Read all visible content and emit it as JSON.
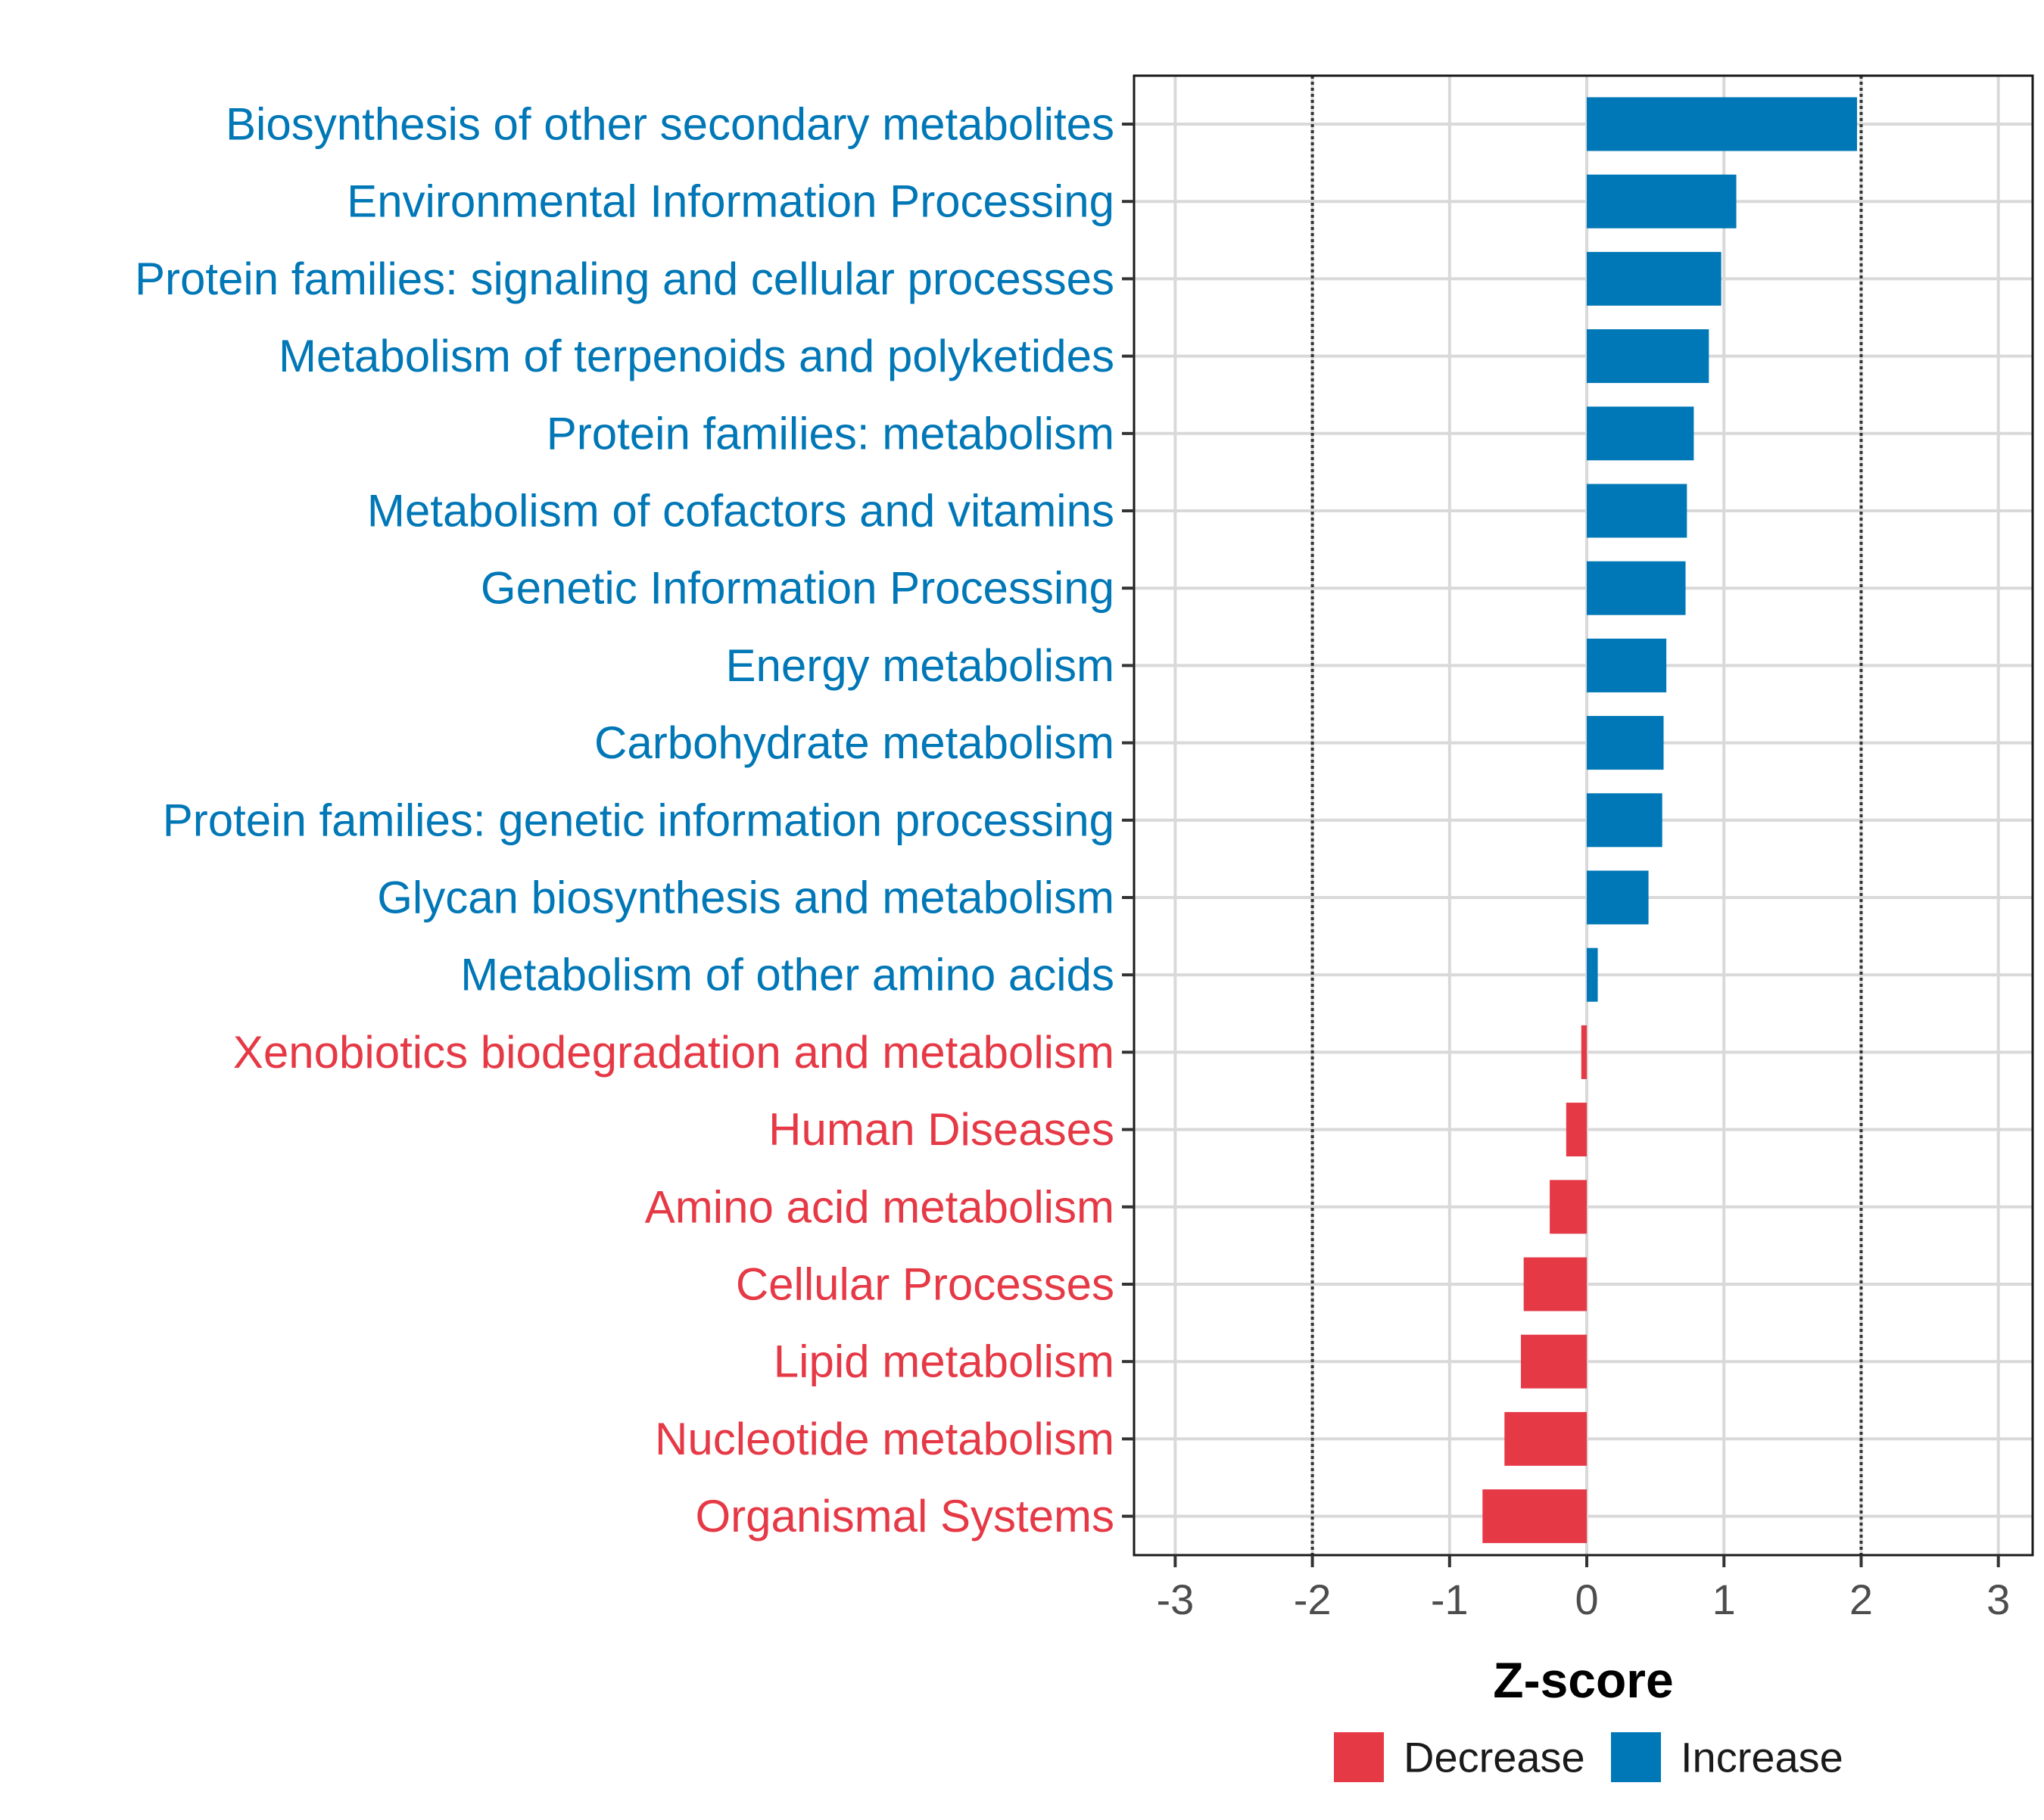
{
  "chart_data": {
    "type": "bar",
    "orientation": "horizontal",
    "xlabel": "Z-score",
    "xlim": [
      -3.3,
      3.25
    ],
    "xticks": [
      -3,
      -2,
      -1,
      0,
      1,
      2,
      3
    ],
    "xtick_labels": [
      "-3",
      "-2",
      "-1",
      "0",
      "1",
      "2",
      "3"
    ],
    "reference_lines": [
      -2,
      2
    ],
    "grid": true,
    "colors": {
      "Increase": "#0077b6",
      "Decrease": "#e63946"
    },
    "legend": {
      "position": "bottom",
      "items": [
        {
          "label": "Decrease",
          "color": "#e63946"
        },
        {
          "label": "Increase",
          "color": "#0077b6"
        }
      ]
    },
    "categories": [
      "Biosynthesis of other secondary metabolites",
      "Environmental Information Processing",
      "Protein families: signaling and cellular processes",
      "Metabolism of terpenoids and polyketides",
      "Protein families: metabolism",
      "Metabolism of cofactors and vitamins",
      "Genetic Information Processing",
      "Energy metabolism",
      "Carbohydrate metabolism",
      "Protein families: genetic information processing",
      "Glycan biosynthesis and metabolism",
      "Metabolism of other amino acids",
      "Xenobiotics biodegradation and metabolism",
      "Human Diseases",
      "Amino acid metabolism",
      "Cellular Processes",
      "Lipid metabolism",
      "Nucleotide metabolism",
      "Organismal Systems"
    ],
    "values": [
      1.97,
      1.09,
      0.98,
      0.89,
      0.78,
      0.73,
      0.72,
      0.58,
      0.56,
      0.55,
      0.45,
      0.08,
      -0.04,
      -0.15,
      -0.27,
      -0.46,
      -0.48,
      -0.6,
      -0.76
    ],
    "groups": [
      "Increase",
      "Increase",
      "Increase",
      "Increase",
      "Increase",
      "Increase",
      "Increase",
      "Increase",
      "Increase",
      "Increase",
      "Increase",
      "Increase",
      "Decrease",
      "Decrease",
      "Decrease",
      "Decrease",
      "Decrease",
      "Decrease",
      "Decrease"
    ]
  }
}
